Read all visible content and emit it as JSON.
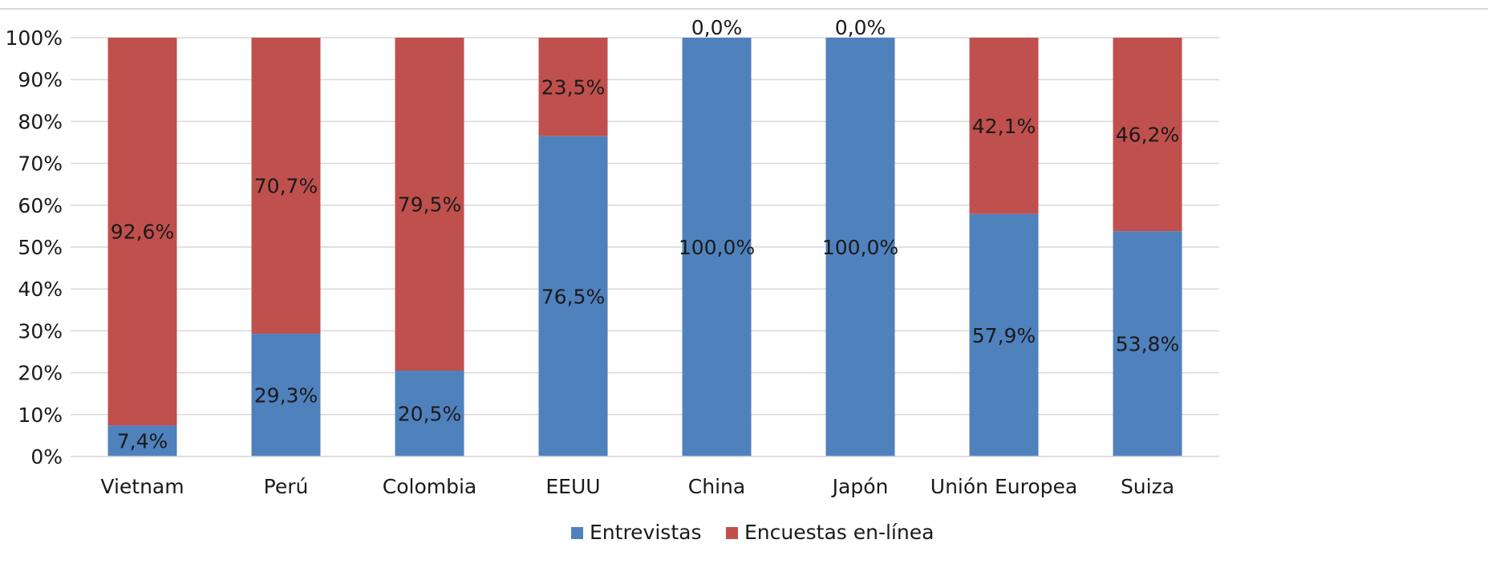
{
  "chart_data": {
    "type": "bar",
    "stacked": true,
    "percent_stacked": true,
    "categories": [
      "Vietnam",
      "Perú",
      "Colombia",
      "EEUU",
      "China",
      "Japón",
      "Unión Europea",
      "Suiza"
    ],
    "series": [
      {
        "name": "Entrevistas",
        "color": "#4f81bd",
        "values": [
          7.4,
          29.3,
          20.5,
          76.5,
          100.0,
          100.0,
          57.9,
          53.8
        ],
        "labels": [
          "7,4%",
          "29,3%",
          "20,5%",
          "76,5%",
          "100,0%",
          "100,0%",
          "57,9%",
          "53,8%"
        ]
      },
      {
        "name": "Encuestas en-línea",
        "color": "#c0504d",
        "values": [
          92.6,
          70.7,
          79.5,
          23.5,
          0.0,
          0.0,
          42.1,
          46.2
        ],
        "labels": [
          "92,6%",
          "70,7%",
          "79,5%",
          "23,5%",
          "0,0%",
          "0,0%",
          "42,1%",
          "46,2%"
        ]
      }
    ],
    "ylim": [
      0,
      100
    ],
    "yticks": [
      "0%",
      "10%",
      "20%",
      "30%",
      "40%",
      "50%",
      "60%",
      "70%",
      "80%",
      "90%",
      "100%"
    ],
    "grid": true,
    "gridline_color": "#d9d9d9",
    "legend_position": "bottom"
  }
}
